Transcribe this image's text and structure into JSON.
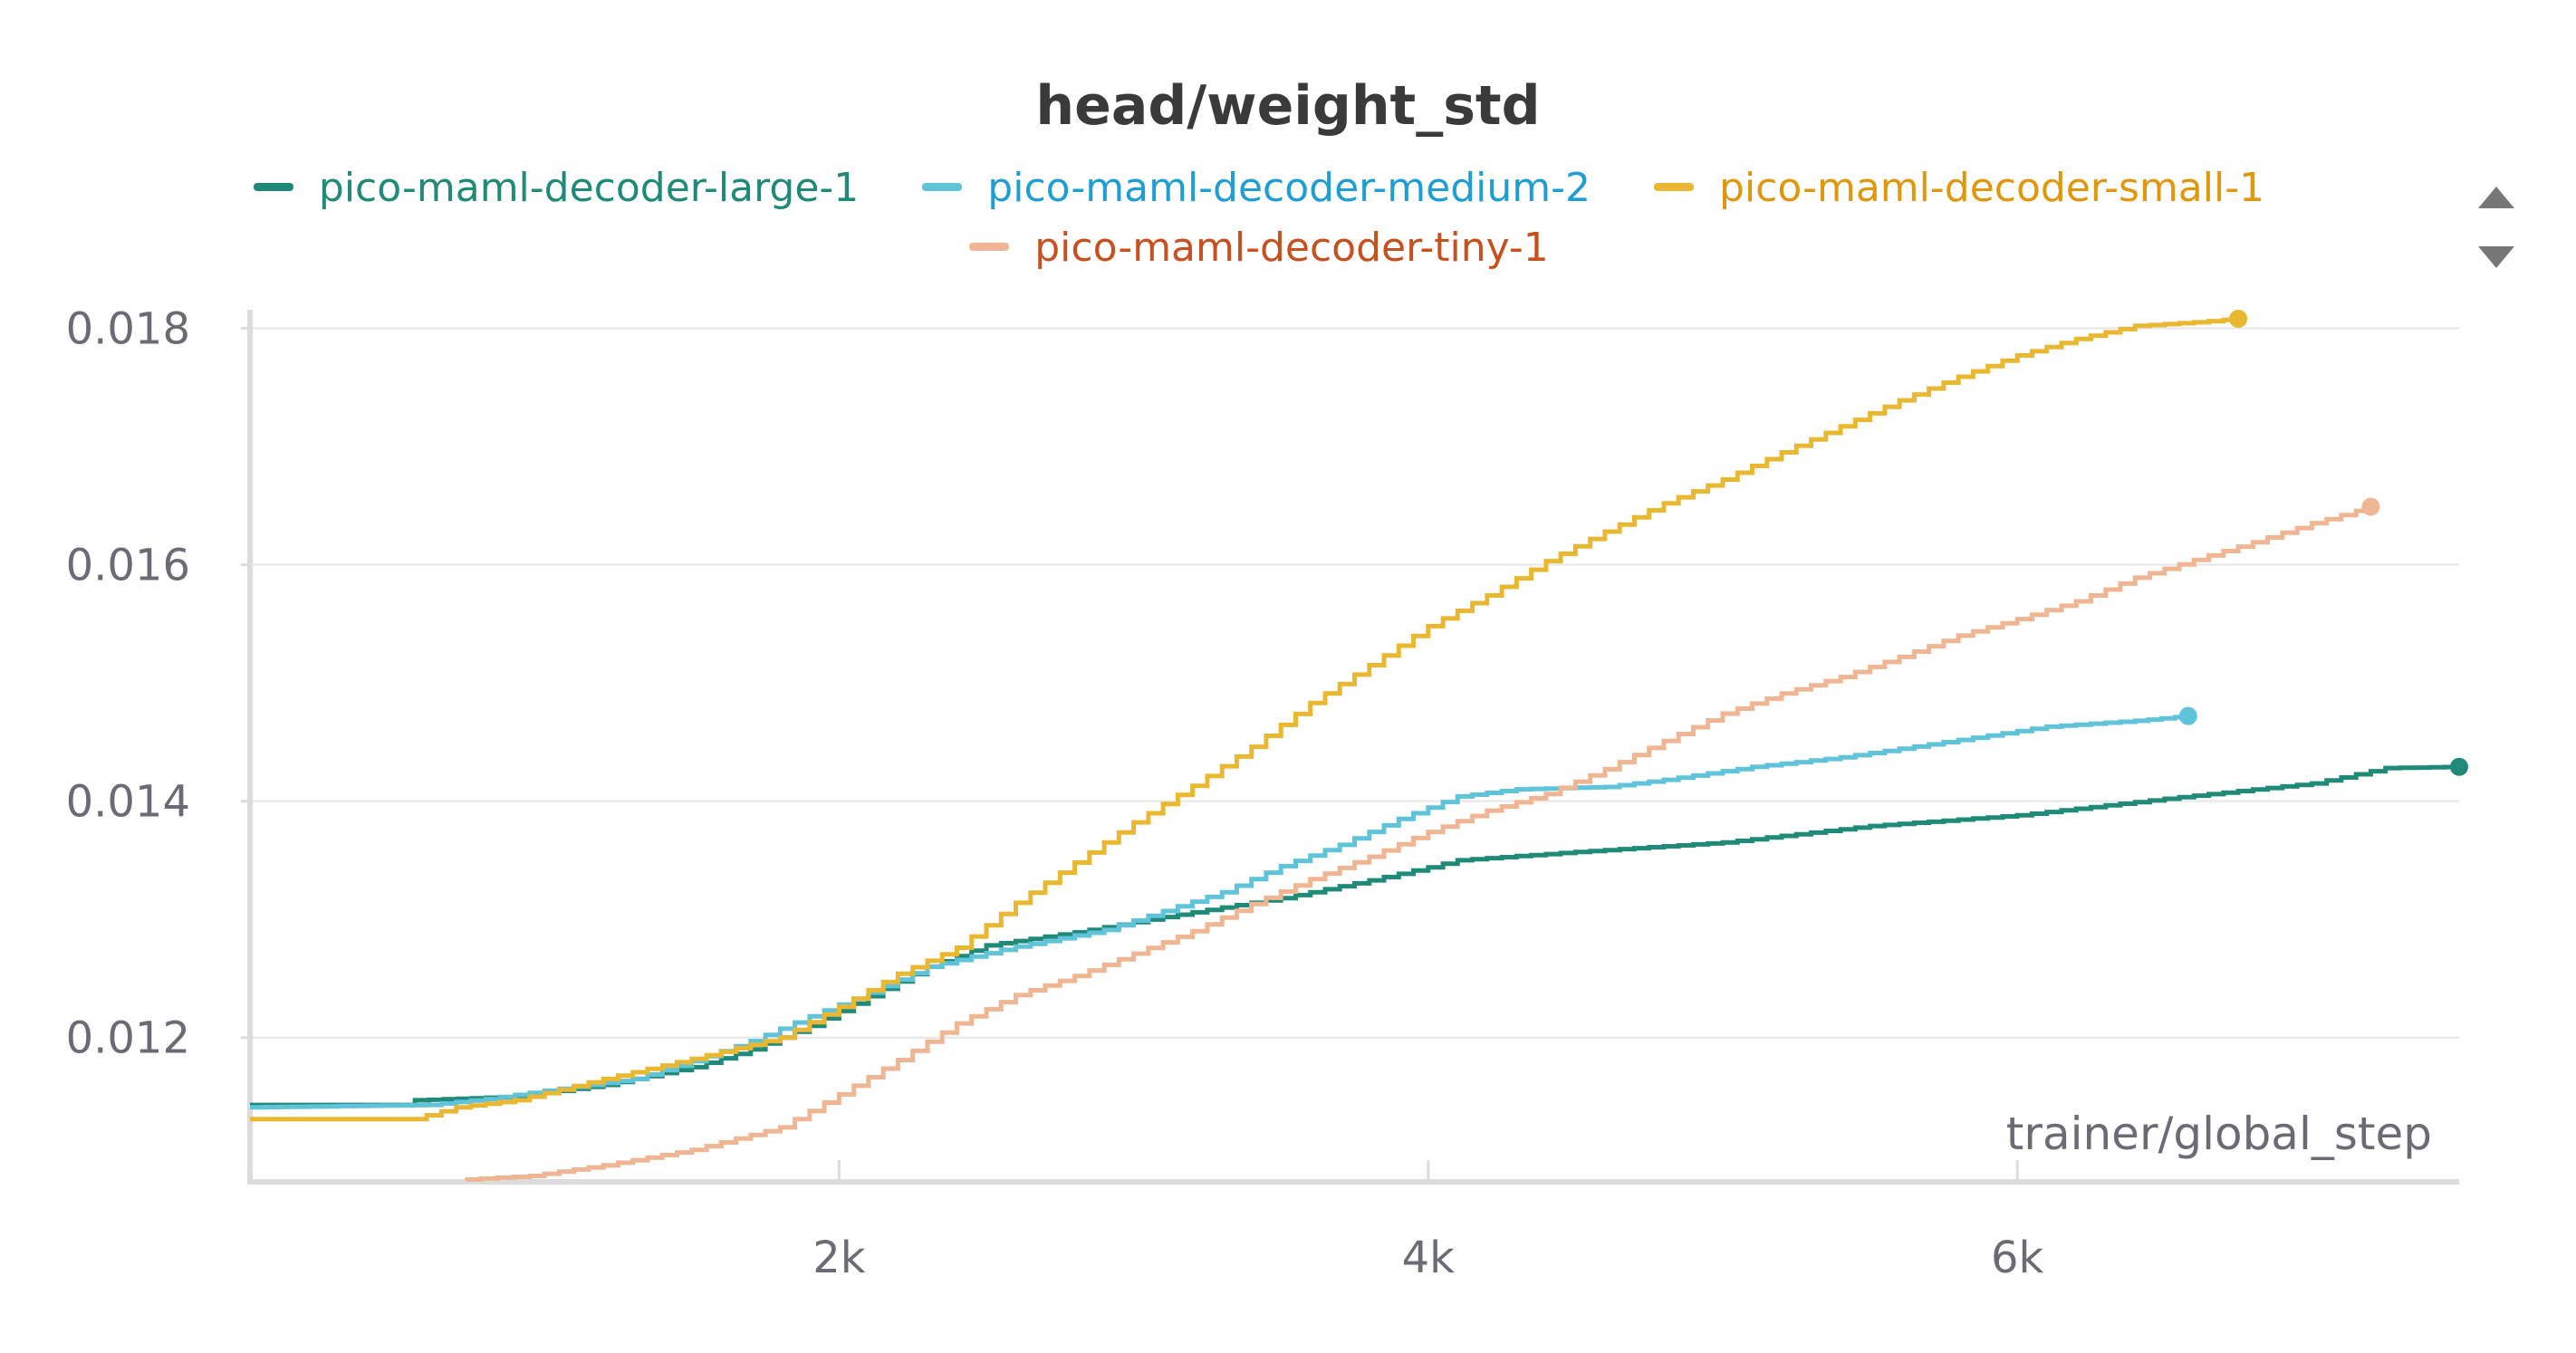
{
  "chart_data": {
    "type": "line",
    "title": "head/weight_std",
    "xlabel": "trainer/global_step",
    "ylabel": "",
    "xlim": [
      0,
      7500
    ],
    "ylim": [
      0.01078,
      0.01808
    ],
    "x_ticks": [
      2000,
      4000,
      6000
    ],
    "x_tick_labels": [
      "2k",
      "4k",
      "6k"
    ],
    "y_ticks": [
      0.012,
      0.014,
      0.016,
      0.018
    ],
    "y_tick_labels": [
      "0.012",
      "0.014",
      "0.016",
      "0.018"
    ],
    "grid": true,
    "legend_position": "top",
    "series": [
      {
        "name": "pico-maml-decoder-large-1",
        "color": "#1f8a78",
        "label_color": "#1f8a78",
        "line_style": "step",
        "points": [
          [
            0,
            0.01143
          ],
          [
            550,
            0.01143
          ],
          [
            560,
            0.01147
          ],
          [
            900,
            0.0115
          ],
          [
            1200,
            0.0116
          ],
          [
            1500,
            0.01175
          ],
          [
            1700,
            0.0119
          ],
          [
            1900,
            0.0121
          ],
          [
            2100,
            0.01235
          ],
          [
            2300,
            0.0126
          ],
          [
            2500,
            0.01278
          ],
          [
            2800,
            0.01289
          ],
          [
            3100,
            0.01302
          ],
          [
            3500,
            0.01318
          ],
          [
            3800,
            0.01333
          ],
          [
            4000,
            0.01344
          ],
          [
            4100,
            0.0135
          ],
          [
            4500,
            0.01357
          ],
          [
            5000,
            0.01365
          ],
          [
            5500,
            0.01379
          ],
          [
            6000,
            0.01388
          ],
          [
            6500,
            0.01402
          ],
          [
            7000,
            0.01415
          ],
          [
            7100,
            0.0142
          ],
          [
            7250,
            0.01428
          ],
          [
            7500,
            0.01429
          ]
        ]
      },
      {
        "name": "pico-maml-decoder-medium-2",
        "color": "#5fc3d9",
        "label_color": "#1f9ed6",
        "line_style": "step",
        "points": [
          [
            0,
            0.01141
          ],
          [
            600,
            0.01143
          ],
          [
            800,
            0.01148
          ],
          [
            1000,
            0.01155
          ],
          [
            1300,
            0.01165
          ],
          [
            1500,
            0.0118
          ],
          [
            1700,
            0.01197
          ],
          [
            1900,
            0.01218
          ],
          [
            2100,
            0.01238
          ],
          [
            2300,
            0.0126
          ],
          [
            2600,
            0.01277
          ],
          [
            2900,
            0.01291
          ],
          [
            3300,
            0.01323
          ],
          [
            3500,
            0.01345
          ],
          [
            3700,
            0.01363
          ],
          [
            3900,
            0.01385
          ],
          [
            4100,
            0.01404
          ],
          [
            4300,
            0.0141
          ],
          [
            4600,
            0.01412
          ],
          [
            4800,
            0.01418
          ],
          [
            5100,
            0.01429
          ],
          [
            5400,
            0.01437
          ],
          [
            5700,
            0.01448
          ],
          [
            6100,
            0.01463
          ],
          [
            6400,
            0.01468
          ],
          [
            6580,
            0.01472
          ]
        ]
      },
      {
        "name": "pico-maml-decoder-small-1",
        "color": "#eab731",
        "label_color": "#e0970c",
        "line_style": "step",
        "points": [
          [
            0,
            0.01131
          ],
          [
            550,
            0.01131
          ],
          [
            700,
            0.01141
          ],
          [
            900,
            0.01147
          ],
          [
            1200,
            0.01165
          ],
          [
            1500,
            0.01182
          ],
          [
            1800,
            0.012
          ],
          [
            2000,
            0.01226
          ],
          [
            2200,
            0.01254
          ],
          [
            2400,
            0.01276
          ],
          [
            2600,
            0.01314
          ],
          [
            2800,
            0.01348
          ],
          [
            3000,
            0.01382
          ],
          [
            3200,
            0.01413
          ],
          [
            3400,
            0.01446
          ],
          [
            3600,
            0.01483
          ],
          [
            3800,
            0.01515
          ],
          [
            4000,
            0.01548
          ],
          [
            4200,
            0.01574
          ],
          [
            4400,
            0.01603
          ],
          [
            4600,
            0.01628
          ],
          [
            4800,
            0.01652
          ],
          [
            5000,
            0.01672
          ],
          [
            5200,
            0.01695
          ],
          [
            5400,
            0.01717
          ],
          [
            5600,
            0.01739
          ],
          [
            5800,
            0.01759
          ],
          [
            6000,
            0.01777
          ],
          [
            6200,
            0.01791
          ],
          [
            6400,
            0.01802
          ],
          [
            6600,
            0.01805
          ],
          [
            6750,
            0.01808
          ]
        ]
      },
      {
        "name": "pico-maml-decoder-tiny-1",
        "color": "#f0b592",
        "label_color": "#c8501e",
        "line_style": "step",
        "points": [
          [
            730,
            0.0108
          ],
          [
            950,
            0.01083
          ],
          [
            1200,
            0.01092
          ],
          [
            1500,
            0.01105
          ],
          [
            1800,
            0.01124
          ],
          [
            2000,
            0.01152
          ],
          [
            2200,
            0.01181
          ],
          [
            2400,
            0.01212
          ],
          [
            2600,
            0.01236
          ],
          [
            2800,
            0.01252
          ],
          [
            3000,
            0.01271
          ],
          [
            3200,
            0.0129
          ],
          [
            3400,
            0.01313
          ],
          [
            3600,
            0.01334
          ],
          [
            3800,
            0.01353
          ],
          [
            4000,
            0.01374
          ],
          [
            4200,
            0.01392
          ],
          [
            4400,
            0.01406
          ],
          [
            4600,
            0.01427
          ],
          [
            4800,
            0.01451
          ],
          [
            5000,
            0.01474
          ],
          [
            5200,
            0.01491
          ],
          [
            5400,
            0.01505
          ],
          [
            5600,
            0.01522
          ],
          [
            5800,
            0.0154
          ],
          [
            6000,
            0.01554
          ],
          [
            6200,
            0.01569
          ],
          [
            6400,
            0.01589
          ],
          [
            6600,
            0.01604
          ],
          [
            6800,
            0.01619
          ],
          [
            7000,
            0.01635
          ],
          [
            7200,
            0.01649
          ]
        ]
      }
    ]
  }
}
